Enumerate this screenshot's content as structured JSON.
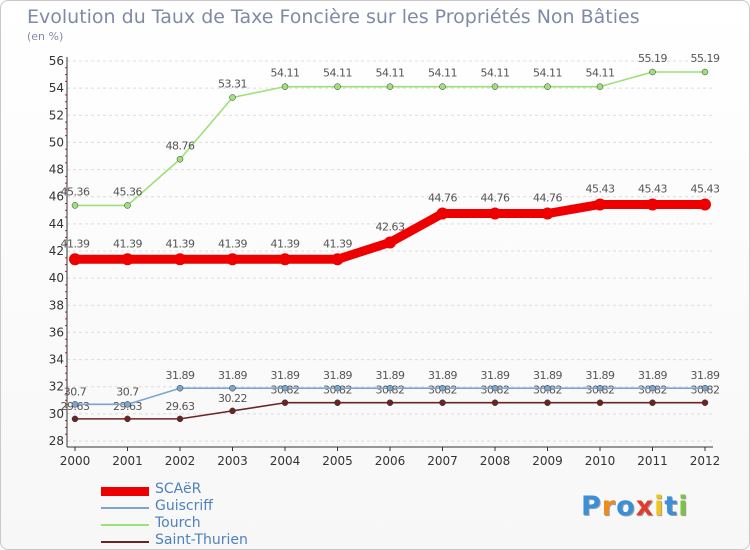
{
  "header": {
    "title": "Evolution du Taux de Taxe Foncière sur les Propriétés Non Bâties",
    "unit": "(en %)"
  },
  "chart_data": {
    "type": "line",
    "title": "Evolution du Taux de Taxe Foncière sur les Propriétés Non Bâties",
    "ylabel": "(en %)",
    "xlabel": "",
    "ylim": [
      28,
      56
    ],
    "yticks": [
      28,
      30,
      32,
      34,
      36,
      38,
      40,
      42,
      44,
      46,
      48,
      50,
      52,
      54,
      56
    ],
    "categories": [
      "2000",
      "2001",
      "2002",
      "2003",
      "2004",
      "2005",
      "2006",
      "2007",
      "2008",
      "2009",
      "2010",
      "2011",
      "2012"
    ],
    "grid": "horizontal",
    "legend_position": "bottom-left",
    "series": [
      {
        "name": "Saint-Thurien",
        "color": "#6b2424",
        "values": [
          29.63,
          29.63,
          29.63,
          30.22,
          30.82,
          30.82,
          30.82,
          30.82,
          30.82,
          30.82,
          30.82,
          30.82,
          30.82
        ],
        "labels": [
          "29.63",
          "29.63",
          "29.63",
          "30.22",
          "30.82",
          "30.82",
          "30.82",
          "30.82",
          "30.82",
          "30.82",
          "30.82",
          "30.82",
          "30.82"
        ]
      },
      {
        "name": "Guiscriff",
        "color": "#7aa6cf",
        "values": [
          30.7,
          30.7,
          31.89,
          31.89,
          31.89,
          31.89,
          31.89,
          31.89,
          31.89,
          31.89,
          31.89,
          31.89,
          31.89
        ],
        "labels": [
          "30.7",
          "30.7",
          "31.89",
          "31.89",
          "31.89",
          "31.89",
          "31.89",
          "31.89",
          "31.89",
          "31.89",
          "31.89",
          "31.89",
          "31.89"
        ]
      },
      {
        "name": "Tourch",
        "color": "#9ee07a",
        "values": [
          45.36,
          45.36,
          48.76,
          53.31,
          54.11,
          54.11,
          54.11,
          54.11,
          54.11,
          54.11,
          54.11,
          55.19,
          55.19
        ],
        "labels": [
          "45.36",
          "45.36",
          "48.76",
          "53.31",
          "54.11",
          "54.11",
          "54.11",
          "54.11",
          "54.11",
          "54.11",
          "54.11",
          "55.19",
          "55.19"
        ]
      },
      {
        "name": "SCAëR",
        "color": "#ee0000",
        "values": [
          41.39,
          41.39,
          41.39,
          41.39,
          41.39,
          41.39,
          42.63,
          44.76,
          44.76,
          44.76,
          45.43,
          45.43,
          45.43
        ],
        "labels": [
          "41.39",
          "41.39",
          "41.39",
          "41.39",
          "41.39",
          "41.39",
          "42.63",
          "44.76",
          "44.76",
          "44.76",
          "45.43",
          "45.43",
          "45.43"
        ]
      }
    ]
  },
  "legend": [
    {
      "name": "SCAëR",
      "color": "#ee0000"
    },
    {
      "name": "Guiscriff",
      "color": "#7aa6cf"
    },
    {
      "name": "Tourch",
      "color": "#9ee07a"
    },
    {
      "name": "Saint-Thurien",
      "color": "#6b2424"
    }
  ],
  "logo": {
    "text": "Proxiti",
    "letter_colors": [
      "#3a8fd8",
      "#f08a1c",
      "#3a8fd8",
      "#e03b2f",
      "#f0c419",
      "#3a8fd8",
      "#7cc242"
    ]
  }
}
